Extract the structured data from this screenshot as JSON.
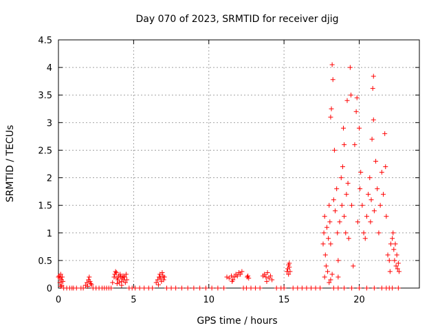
{
  "chart_data": {
    "type": "scatter",
    "title": "Day 070 of 2023, SRMTID for receiver djig",
    "xlabel": "GPS time / hours",
    "ylabel": "SRMTID / TECUs",
    "xlim": [
      0,
      24
    ],
    "ylim": [
      0,
      4.5
    ],
    "grid": true,
    "marker": "plus",
    "color": "#ff0000",
    "x_ticks": [
      {
        "value": 0,
        "label": "0"
      },
      {
        "value": 5,
        "label": "5"
      },
      {
        "value": 10,
        "label": "10"
      },
      {
        "value": 15,
        "label": "15"
      },
      {
        "value": 20,
        "label": "20"
      }
    ],
    "y_ticks": [
      {
        "value": 0,
        "label": "0"
      },
      {
        "value": 0.5,
        "label": "0.5"
      },
      {
        "value": 1,
        "label": "1"
      },
      {
        "value": 1.5,
        "label": "1.5"
      },
      {
        "value": 2,
        "label": "2"
      },
      {
        "value": 2.5,
        "label": "2.5"
      },
      {
        "value": 3,
        "label": "3"
      },
      {
        "value": 3.5,
        "label": "3.5"
      },
      {
        "value": 4,
        "label": "4"
      },
      {
        "value": 4.5,
        "label": "4.5"
      }
    ],
    "series": [
      {
        "name": "SRMTID",
        "points": [
          [
            0.0,
            0.2
          ],
          [
            0.05,
            0.22
          ],
          [
            0.1,
            0.18
          ],
          [
            0.1,
            0.1
          ],
          [
            0.15,
            0.25
          ],
          [
            0.2,
            0.15
          ],
          [
            0.22,
            0.05
          ],
          [
            0.25,
            0.2
          ],
          [
            0.3,
            0.12
          ],
          [
            0.15,
            0.03
          ],
          [
            0.35,
            0.0
          ],
          [
            0.55,
            0.0
          ],
          [
            0.75,
            0.0
          ],
          [
            0.9,
            0.0
          ],
          [
            1.0,
            0.0
          ],
          [
            1.2,
            0.0
          ],
          [
            1.5,
            0.0
          ],
          [
            1.65,
            0.0
          ],
          [
            1.8,
            0.05
          ],
          [
            1.9,
            0.1
          ],
          [
            2.0,
            0.15
          ],
          [
            2.05,
            0.2
          ],
          [
            2.1,
            0.12
          ],
          [
            2.15,
            0.08
          ],
          [
            2.2,
            0.06
          ],
          [
            1.95,
            0.03
          ],
          [
            2.3,
            0.0
          ],
          [
            2.5,
            0.0
          ],
          [
            2.7,
            0.0
          ],
          [
            2.9,
            0.0
          ],
          [
            3.05,
            0.0
          ],
          [
            3.2,
            0.0
          ],
          [
            3.35,
            0.0
          ],
          [
            3.5,
            0.0
          ],
          [
            3.6,
            0.1
          ],
          [
            3.7,
            0.2
          ],
          [
            3.75,
            0.25
          ],
          [
            3.8,
            0.3
          ],
          [
            3.85,
            0.28
          ],
          [
            3.9,
            0.18
          ],
          [
            3.95,
            0.15
          ],
          [
            4.0,
            0.22
          ],
          [
            4.05,
            0.1
          ],
          [
            4.1,
            0.25
          ],
          [
            4.15,
            0.2
          ],
          [
            4.2,
            0.12
          ],
          [
            4.25,
            0.18
          ],
          [
            4.3,
            0.22
          ],
          [
            4.35,
            0.15
          ],
          [
            4.4,
            0.2
          ],
          [
            4.45,
            0.1
          ],
          [
            4.5,
            0.25
          ],
          [
            4.55,
            0.15
          ],
          [
            3.9,
            0.08
          ],
          [
            4.2,
            0.05
          ],
          [
            4.7,
            0.0
          ],
          [
            4.9,
            0.0
          ],
          [
            5.1,
            0.0
          ],
          [
            5.4,
            0.0
          ],
          [
            5.7,
            0.0
          ],
          [
            6.0,
            0.0
          ],
          [
            6.25,
            0.0
          ],
          [
            6.5,
            0.1
          ],
          [
            6.6,
            0.15
          ],
          [
            6.7,
            0.2
          ],
          [
            6.75,
            0.25
          ],
          [
            6.8,
            0.18
          ],
          [
            6.85,
            0.12
          ],
          [
            6.9,
            0.28
          ],
          [
            6.95,
            0.22
          ],
          [
            7.0,
            0.15
          ],
          [
            7.05,
            0.2
          ],
          [
            6.65,
            0.06
          ],
          [
            7.2,
            0.0
          ],
          [
            7.5,
            0.0
          ],
          [
            7.8,
            0.0
          ],
          [
            8.2,
            0.0
          ],
          [
            8.6,
            0.0
          ],
          [
            9.0,
            0.0
          ],
          [
            9.4,
            0.0
          ],
          [
            9.8,
            0.0
          ],
          [
            10.2,
            0.0
          ],
          [
            10.6,
            0.0
          ],
          [
            11.0,
            0.0
          ],
          [
            11.2,
            0.2
          ],
          [
            11.35,
            0.18
          ],
          [
            11.5,
            0.22
          ],
          [
            11.6,
            0.15
          ],
          [
            11.7,
            0.2
          ],
          [
            11.8,
            0.25
          ],
          [
            11.9,
            0.22
          ],
          [
            12.0,
            0.28
          ],
          [
            12.1,
            0.25
          ],
          [
            12.2,
            0.3
          ],
          [
            11.55,
            0.12
          ],
          [
            12.3,
            0.0
          ],
          [
            12.5,
            0.0
          ],
          [
            12.8,
            0.0
          ],
          [
            13.1,
            0.0
          ],
          [
            13.4,
            0.0
          ],
          [
            12.55,
            0.2
          ],
          [
            12.6,
            0.22
          ],
          [
            12.65,
            0.18
          ],
          [
            13.6,
            0.22
          ],
          [
            13.7,
            0.25
          ],
          [
            13.8,
            0.2
          ],
          [
            13.9,
            0.28
          ],
          [
            14.0,
            0.18
          ],
          [
            14.1,
            0.22
          ],
          [
            14.2,
            0.15
          ],
          [
            13.85,
            0.12
          ],
          [
            14.5,
            0.0
          ],
          [
            14.8,
            0.0
          ],
          [
            15.0,
            0.0
          ],
          [
            15.2,
            0.3
          ],
          [
            15.25,
            0.35
          ],
          [
            15.3,
            0.42
          ],
          [
            15.35,
            0.38
          ],
          [
            15.4,
            0.3
          ],
          [
            15.3,
            0.25
          ],
          [
            15.35,
            0.45
          ],
          [
            15.6,
            0.0
          ],
          [
            15.9,
            0.0
          ],
          [
            16.2,
            0.0
          ],
          [
            16.5,
            0.0
          ],
          [
            16.8,
            0.0
          ],
          [
            17.1,
            0.0
          ],
          [
            17.4,
            0.0
          ],
          [
            17.6,
            0.8
          ],
          [
            17.65,
            1.0
          ],
          [
            17.7,
            1.3
          ],
          [
            17.75,
            0.6
          ],
          [
            17.8,
            0.4
          ],
          [
            17.85,
            1.1
          ],
          [
            17.9,
            0.3
          ],
          [
            17.95,
            0.9
          ],
          [
            17.7,
            0.2
          ],
          [
            18.0,
            1.5
          ],
          [
            18.05,
            1.2
          ],
          [
            18.1,
            0.8
          ],
          [
            18.15,
            3.25
          ],
          [
            18.2,
            4.05
          ],
          [
            18.25,
            3.78
          ],
          [
            18.3,
            1.6
          ],
          [
            18.35,
            2.5
          ],
          [
            18.4,
            1.4
          ],
          [
            18.1,
            3.1
          ],
          [
            18.0,
            0.1
          ],
          [
            18.1,
            0.15
          ],
          [
            18.2,
            0.25
          ],
          [
            18.5,
            1.8
          ],
          [
            18.55,
            1.0
          ],
          [
            18.6,
            0.5
          ],
          [
            18.7,
            1.2
          ],
          [
            18.8,
            2.0
          ],
          [
            18.85,
            1.5
          ],
          [
            18.9,
            2.2
          ],
          [
            18.95,
            2.9
          ],
          [
            19.0,
            1.3
          ],
          [
            18.6,
            0.2
          ],
          [
            19.0,
            2.6
          ],
          [
            19.1,
            1.0
          ],
          [
            19.15,
            1.7
          ],
          [
            19.2,
            3.4
          ],
          [
            19.25,
            1.9
          ],
          [
            19.3,
            0.9
          ],
          [
            19.4,
            4.0
          ],
          [
            19.45,
            3.5
          ],
          [
            19.5,
            1.5
          ],
          [
            19.6,
            0.4
          ],
          [
            19.7,
            2.6
          ],
          [
            19.8,
            3.2
          ],
          [
            19.85,
            3.45
          ],
          [
            19.9,
            1.2
          ],
          [
            20.0,
            2.9
          ],
          [
            20.05,
            1.8
          ],
          [
            20.1,
            2.1
          ],
          [
            20.2,
            1.5
          ],
          [
            20.3,
            1.0
          ],
          [
            20.4,
            0.9
          ],
          [
            20.5,
            1.3
          ],
          [
            20.6,
            1.7
          ],
          [
            20.7,
            2.0
          ],
          [
            20.75,
            1.2
          ],
          [
            20.8,
            1.6
          ],
          [
            20.85,
            2.7
          ],
          [
            20.9,
            3.62
          ],
          [
            20.95,
            3.84
          ],
          [
            20.95,
            3.05
          ],
          [
            21.0,
            1.4
          ],
          [
            21.1,
            2.3
          ],
          [
            21.2,
            1.8
          ],
          [
            21.3,
            1.0
          ],
          [
            21.4,
            1.5
          ],
          [
            21.5,
            2.1
          ],
          [
            21.6,
            1.7
          ],
          [
            21.7,
            2.8
          ],
          [
            21.75,
            2.2
          ],
          [
            21.8,
            1.3
          ],
          [
            21.9,
            0.6
          ],
          [
            22.0,
            0.5
          ],
          [
            22.05,
            0.3
          ],
          [
            22.1,
            0.8
          ],
          [
            22.2,
            0.9
          ],
          [
            22.25,
            1.0
          ],
          [
            22.3,
            0.7
          ],
          [
            22.35,
            0.5
          ],
          [
            22.4,
            0.8
          ],
          [
            22.45,
            0.4
          ],
          [
            22.5,
            0.6
          ],
          [
            22.55,
            0.35
          ],
          [
            22.6,
            0.45
          ],
          [
            22.65,
            0.3
          ],
          [
            18.3,
            0.0
          ],
          [
            18.6,
            0.0
          ],
          [
            19.0,
            0.0
          ],
          [
            19.5,
            0.0
          ],
          [
            20.0,
            0.0
          ],
          [
            20.5,
            0.0
          ],
          [
            21.0,
            0.0
          ],
          [
            21.5,
            0.0
          ],
          [
            21.8,
            0.0
          ],
          [
            22.0,
            0.0
          ],
          [
            22.2,
            0.0
          ],
          [
            22.6,
            0.0
          ]
        ]
      }
    ]
  }
}
